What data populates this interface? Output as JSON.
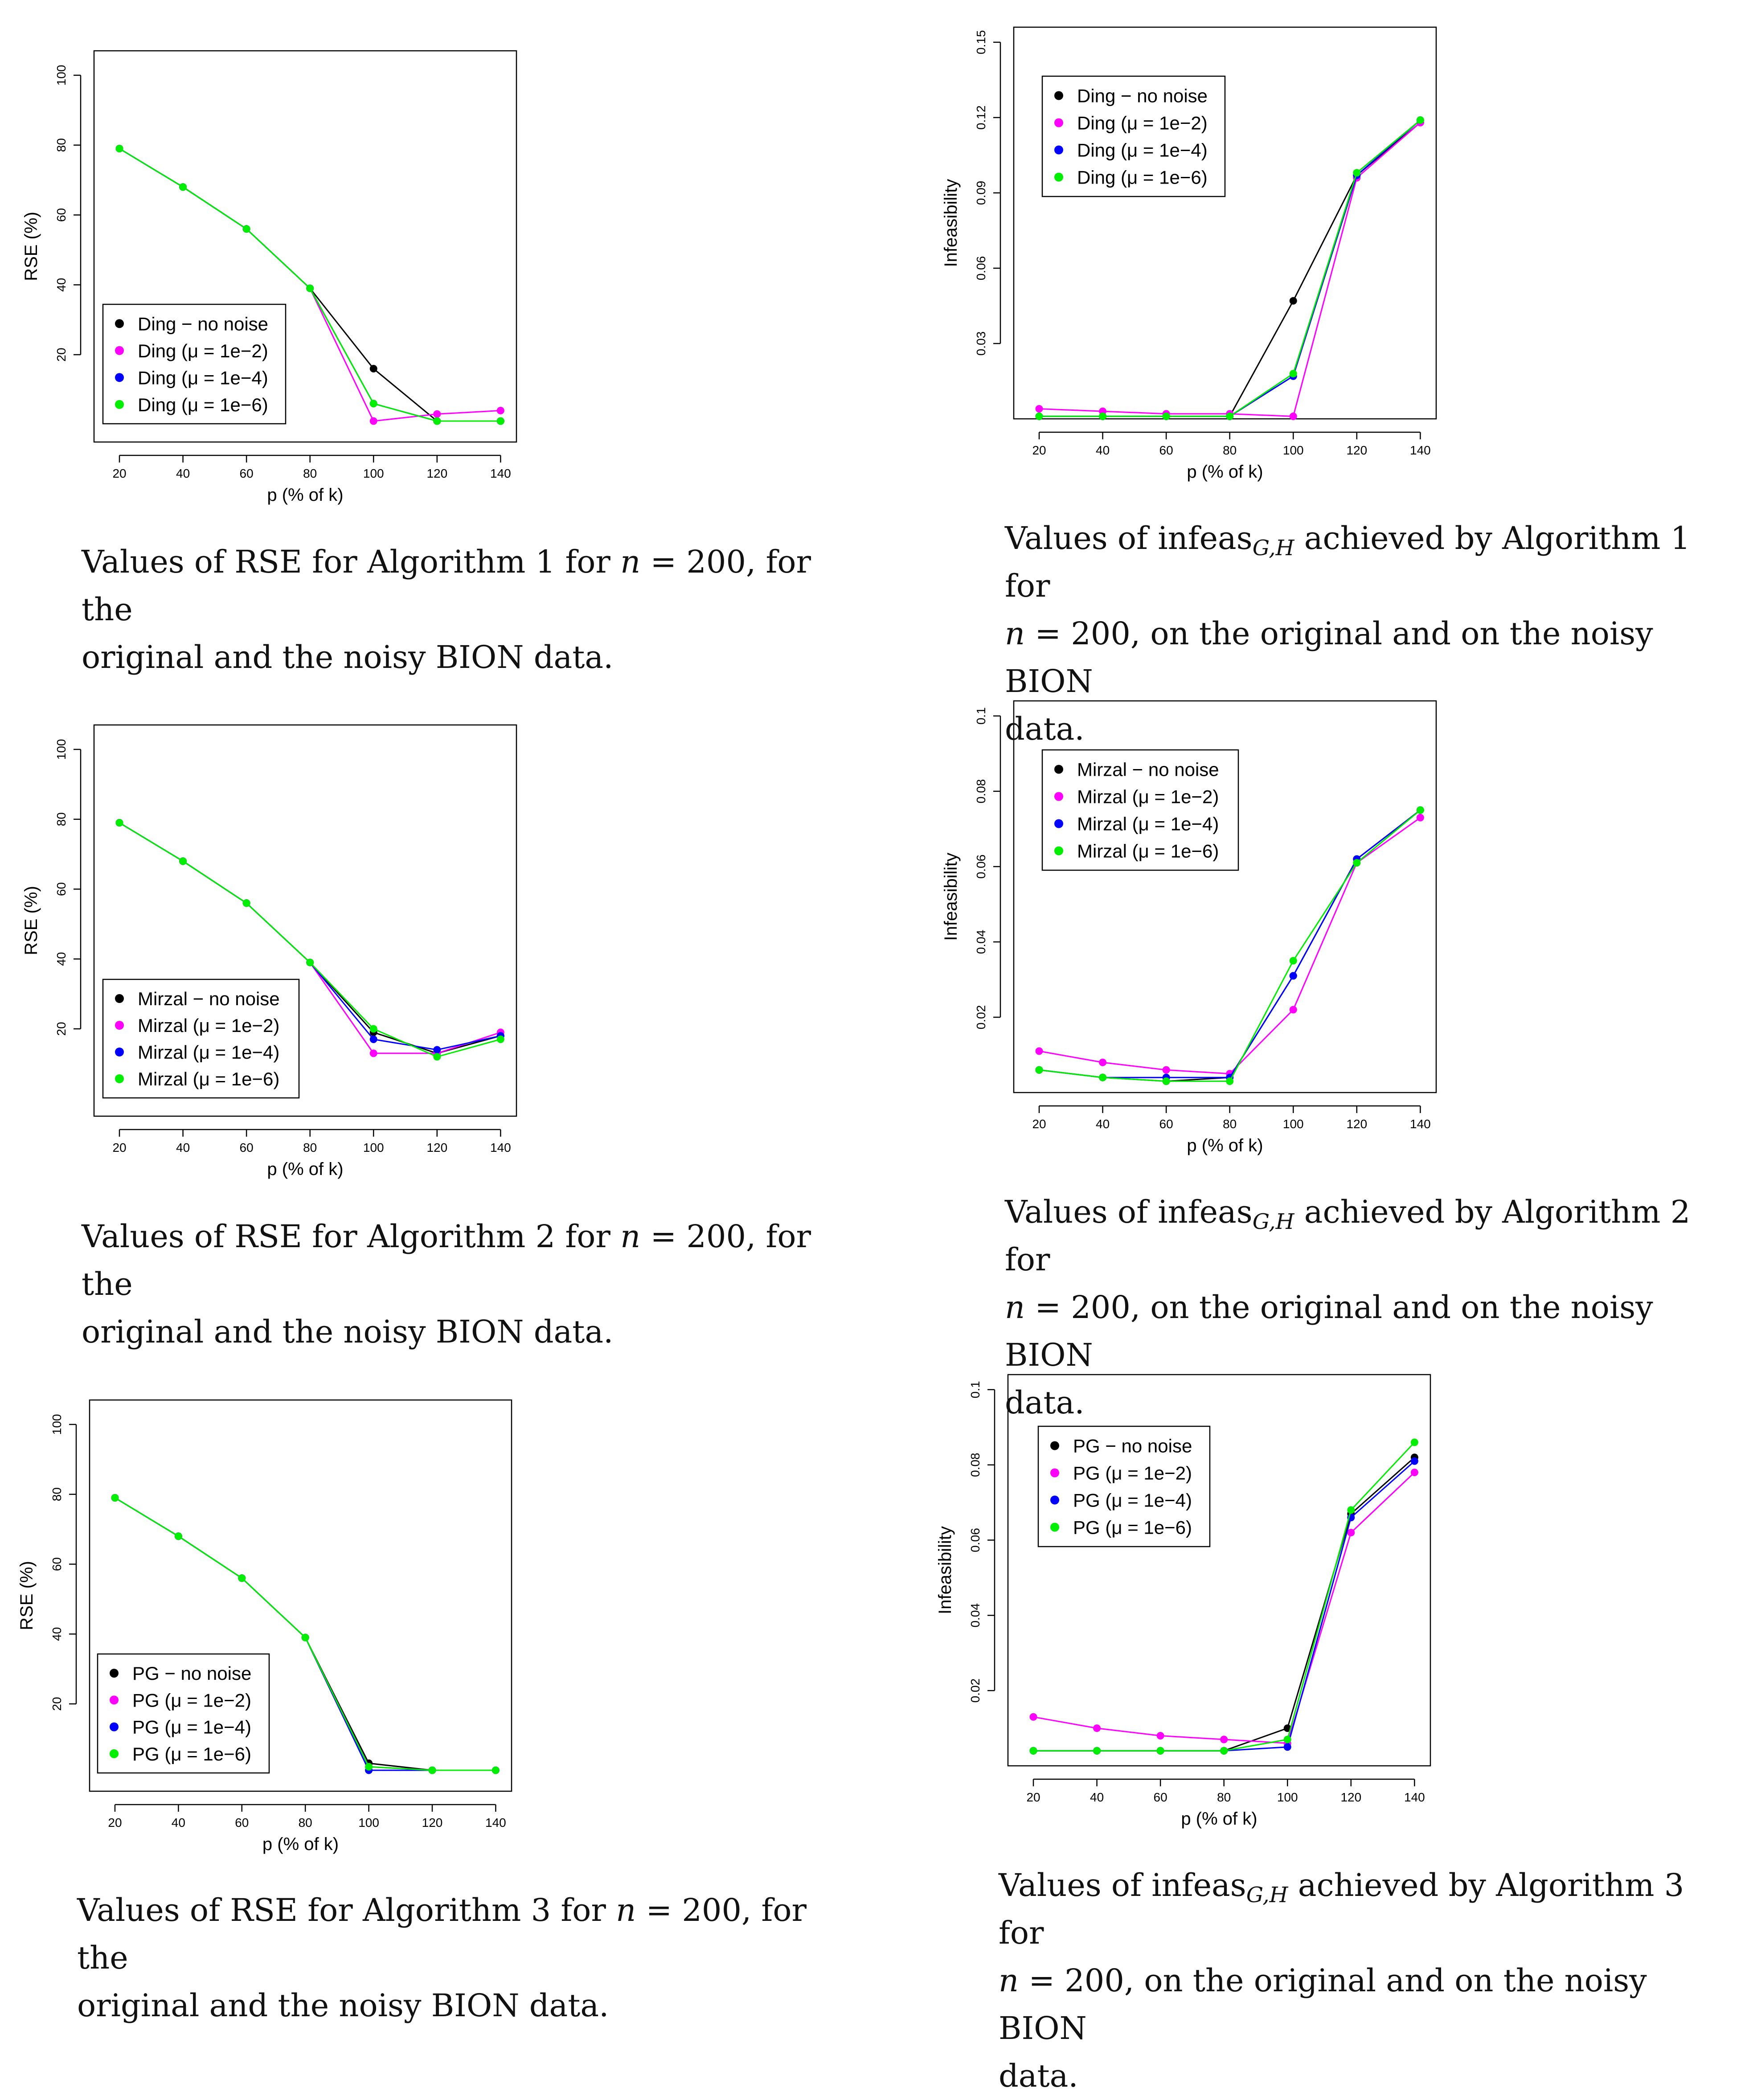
{
  "chart_data": [
    {
      "type": "line",
      "xlabel": "p (% of k)",
      "ylabel": "RSE (%)",
      "x": [
        20,
        40,
        60,
        80,
        100,
        120,
        140
      ],
      "xticks": [
        "20",
        "40",
        "60",
        "80",
        "100",
        "120",
        "140"
      ],
      "yticks": [
        "20",
        "40",
        "60",
        "80",
        "100"
      ],
      "ytick_values": [
        20,
        40,
        60,
        80,
        100
      ],
      "xlim": [
        12,
        145
      ],
      "ylim": [
        -5,
        107
      ],
      "series": [
        {
          "name": "Ding − no noise",
          "color": "#000000",
          "values": [
            79,
            68,
            56,
            39,
            16,
            1,
            1
          ]
        },
        {
          "name": "Ding (μ = 1e−2)",
          "color": "#ff00ff",
          "values": [
            79,
            68,
            56,
            39,
            1,
            3,
            4
          ]
        },
        {
          "name": "Ding (μ = 1e−4)",
          "color": "#0000ff",
          "values": [
            79,
            68,
            56,
            39,
            6,
            1,
            1
          ]
        },
        {
          "name": "Ding (μ = 1e−6)",
          "color": "#00ee00",
          "values": [
            79,
            68,
            56,
            39,
            6,
            1,
            1
          ]
        }
      ],
      "caption": {
        "line1_prefix": "Values of RSE for Algorithm 1 for ",
        "n_var": "n",
        "line1_eq": " = 200, for the",
        "line2": "original and the noisy BION data."
      }
    },
    {
      "type": "line",
      "xlabel": "p (% of k)",
      "ylabel": "Infeasibility",
      "x": [
        20,
        40,
        60,
        80,
        100,
        120,
        140
      ],
      "xticks": [
        "20",
        "40",
        "60",
        "80",
        "100",
        "120",
        "140"
      ],
      "yticks": [
        "0.03",
        "0.06",
        "0.09",
        "0.12",
        "0.15"
      ],
      "ytick_values": [
        0.03,
        0.06,
        0.09,
        0.12,
        0.15
      ],
      "xlim": [
        12,
        145
      ],
      "ylim": [
        0,
        0.156
      ],
      "series": [
        {
          "name": "Ding − no noise",
          "color": "#000000",
          "values": [
            0.001,
            0.001,
            0.001,
            0.001,
            0.047,
            0.097,
            0.118
          ]
        },
        {
          "name": "Ding (μ = 1e−2)",
          "color": "#ff00ff",
          "values": [
            0.004,
            0.003,
            0.002,
            0.002,
            0.001,
            0.096,
            0.118
          ]
        },
        {
          "name": "Ding (μ = 1e−4)",
          "color": "#0000ff",
          "values": [
            0.001,
            0.001,
            0.001,
            0.001,
            0.017,
            0.097,
            0.119
          ]
        },
        {
          "name": "Ding (μ = 1e−6)",
          "color": "#00ee00",
          "values": [
            0.001,
            0.001,
            0.001,
            0.001,
            0.018,
            0.098,
            0.119
          ]
        }
      ],
      "caption": {
        "line1_prefix": "Values of infeas",
        "sub": "G,H",
        "line1_suffix": " achieved by Algorithm 1 for",
        "n_var": "n",
        "line2_eq": " = 200, on the original and on the noisy BION",
        "line3": "data."
      }
    },
    {
      "type": "line",
      "xlabel": "p (% of k)",
      "ylabel": "RSE (%)",
      "x": [
        20,
        40,
        60,
        80,
        100,
        120,
        140
      ],
      "xticks": [
        "20",
        "40",
        "60",
        "80",
        "100",
        "120",
        "140"
      ],
      "yticks": [
        "20",
        "40",
        "60",
        "80",
        "100"
      ],
      "ytick_values": [
        20,
        40,
        60,
        80,
        100
      ],
      "xlim": [
        12,
        145
      ],
      "ylim": [
        -5,
        107
      ],
      "series": [
        {
          "name": "Mirzal − no noise",
          "color": "#000000",
          "values": [
            79,
            68,
            56,
            39,
            19,
            13,
            18
          ]
        },
        {
          "name": "Mirzal (μ = 1e−2)",
          "color": "#ff00ff",
          "values": [
            79,
            68,
            56,
            39,
            13,
            13,
            19
          ]
        },
        {
          "name": "Mirzal (μ = 1e−4)",
          "color": "#0000ff",
          "values": [
            79,
            68,
            56,
            39,
            17,
            14,
            18
          ]
        },
        {
          "name": "Mirzal (μ = 1e−6)",
          "color": "#00ee00",
          "values": [
            79,
            68,
            56,
            39,
            20,
            12,
            17
          ]
        }
      ],
      "caption": {
        "line1_prefix": "Values of RSE for Algorithm 2 for ",
        "n_var": "n",
        "line1_eq": " = 200, for the",
        "line2": "original and the noisy BION data."
      }
    },
    {
      "type": "line",
      "xlabel": "p (% of k)",
      "ylabel": "Infeasibility",
      "x": [
        20,
        40,
        60,
        80,
        100,
        120,
        140
      ],
      "xticks": [
        "20",
        "40",
        "60",
        "80",
        "100",
        "120",
        "140"
      ],
      "yticks": [
        "0.02",
        "0.04",
        "0.06",
        "0.08",
        "0.1"
      ],
      "ytick_values": [
        0.02,
        0.04,
        0.06,
        0.08,
        0.1
      ],
      "xlim": [
        12,
        145
      ],
      "ylim": [
        0,
        0.104
      ],
      "series": [
        {
          "name": "Mirzal − no noise",
          "color": "#000000",
          "values": [
            0.006,
            0.004,
            0.003,
            0.004,
            0.031,
            0.062,
            0.075
          ]
        },
        {
          "name": "Mirzal (μ = 1e−2)",
          "color": "#ff00ff",
          "values": [
            0.011,
            0.008,
            0.006,
            0.005,
            0.022,
            0.061,
            0.073
          ]
        },
        {
          "name": "Mirzal (μ = 1e−4)",
          "color": "#0000ff",
          "values": [
            0.006,
            0.004,
            0.004,
            0.004,
            0.031,
            0.062,
            0.075
          ]
        },
        {
          "name": "Mirzal (μ = 1e−6)",
          "color": "#00ee00",
          "values": [
            0.006,
            0.004,
            0.003,
            0.003,
            0.035,
            0.061,
            0.075
          ]
        }
      ],
      "caption": {
        "line1_prefix": "Values of infeas",
        "sub": "G,H",
        "line1_suffix": " achieved by Algorithm 2 for",
        "n_var": "n",
        "line2_eq": " = 200, on the original and on the noisy BION",
        "line3": "data."
      }
    },
    {
      "type": "line",
      "xlabel": "p (% of k)",
      "ylabel": "RSE (%)",
      "x": [
        20,
        40,
        60,
        80,
        100,
        120,
        140
      ],
      "xticks": [
        "20",
        "40",
        "60",
        "80",
        "100",
        "120",
        "140"
      ],
      "yticks": [
        "20",
        "40",
        "60",
        "80",
        "100"
      ],
      "ytick_values": [
        20,
        40,
        60,
        80,
        100
      ],
      "xlim": [
        12,
        145
      ],
      "ylim": [
        -5,
        107
      ],
      "series": [
        {
          "name": "PG − no noise",
          "color": "#000000",
          "values": [
            79,
            68,
            56,
            39,
            3,
            1,
            1
          ]
        },
        {
          "name": "PG (μ = 1e−2)",
          "color": "#ff00ff",
          "values": [
            79,
            68,
            56,
            39,
            2,
            1,
            1
          ]
        },
        {
          "name": "PG (μ = 1e−4)",
          "color": "#0000ff",
          "values": [
            79,
            68,
            56,
            39,
            1,
            1,
            1
          ]
        },
        {
          "name": "PG (μ = 1e−6)",
          "color": "#00ee00",
          "values": [
            79,
            68,
            56,
            39,
            2,
            1,
            1
          ]
        }
      ],
      "caption": {
        "line1_prefix": "Values of RSE for Algorithm 3 for ",
        "n_var": "n",
        "line1_eq": " = 200, for the",
        "line2": "original and the noisy BION data."
      }
    },
    {
      "type": "line",
      "xlabel": "p (% of k)",
      "ylabel": "Infeasibility",
      "x": [
        20,
        40,
        60,
        80,
        100,
        120,
        140
      ],
      "xticks": [
        "20",
        "40",
        "60",
        "80",
        "100",
        "120",
        "140"
      ],
      "yticks": [
        "0.02",
        "0.04",
        "0.06",
        "0.08",
        "0.1"
      ],
      "ytick_values": [
        0.02,
        0.04,
        0.06,
        0.08,
        0.1
      ],
      "xlim": [
        12,
        145
      ],
      "ylim": [
        0,
        0.104
      ],
      "series": [
        {
          "name": "PG − no noise",
          "color": "#000000",
          "values": [
            0.004,
            0.004,
            0.004,
            0.004,
            0.01,
            0.067,
            0.082
          ]
        },
        {
          "name": "PG (μ = 1e−2)",
          "color": "#ff00ff",
          "values": [
            0.013,
            0.01,
            0.008,
            0.007,
            0.006,
            0.062,
            0.078
          ]
        },
        {
          "name": "PG (μ = 1e−4)",
          "color": "#0000ff",
          "values": [
            0.004,
            0.004,
            0.004,
            0.004,
            0.005,
            0.066,
            0.081
          ]
        },
        {
          "name": "PG (μ = 1e−6)",
          "color": "#00ee00",
          "values": [
            0.004,
            0.004,
            0.004,
            0.004,
            0.007,
            0.068,
            0.086
          ]
        }
      ],
      "caption": {
        "line1_prefix": "Values of infeas",
        "sub": "G,H",
        "line1_suffix": " achieved by Algorithm 3 for",
        "n_var": "n",
        "line2_eq": " = 200, on the original and on the noisy BION",
        "line3": "data."
      }
    }
  ]
}
